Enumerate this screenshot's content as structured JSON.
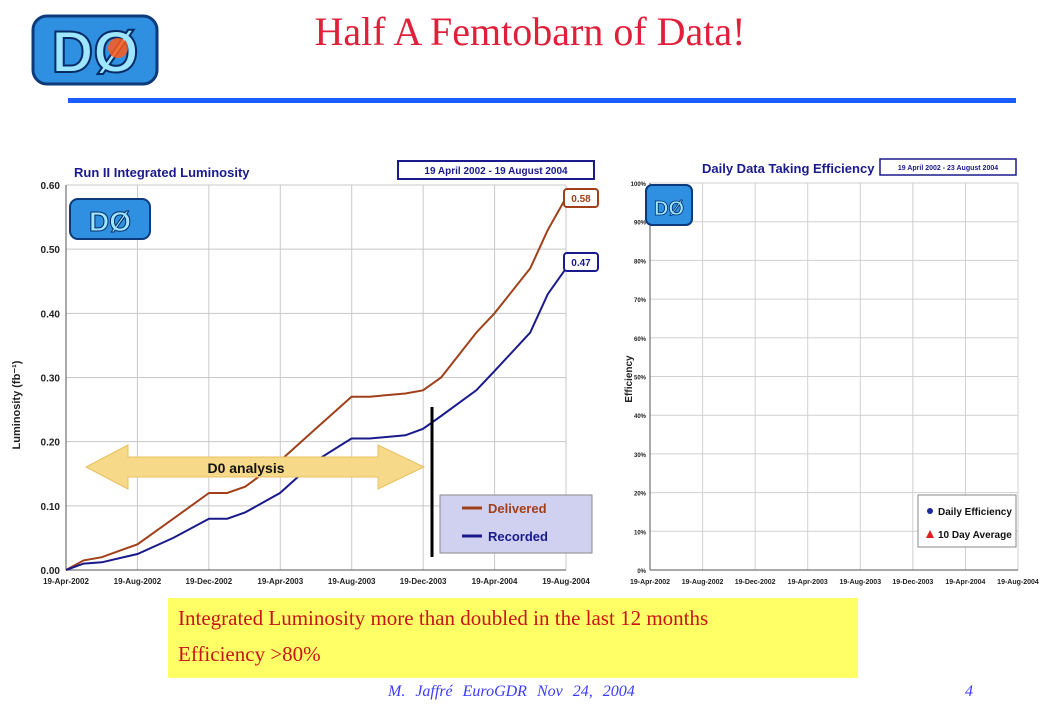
{
  "header": {
    "title": "Half A Femtobarn of Data!",
    "logo_text": "DØ"
  },
  "colors": {
    "title": "#e0203a",
    "rule": "#1a5cff",
    "delivered": "#a0401a",
    "recorded": "#1a1a8c",
    "daily_efficiency": "#1a2a9c",
    "ten_day_average": "#e02020",
    "callout_bg": "#ffff66"
  },
  "chart_data": [
    {
      "type": "line",
      "title": "Run II Integrated Luminosity",
      "date_range": "19 April 2002 - 19 August 2004",
      "ylabel": "Luminosity (fb⁻¹)",
      "xlabel": "",
      "ylim": [
        0,
        0.6
      ],
      "yticks": [
        "0.00",
        "0.10",
        "0.20",
        "0.30",
        "0.40",
        "0.50",
        "0.60"
      ],
      "xticks": [
        "19-Apr-2002",
        "19-Aug-2002",
        "19-Dec-2002",
        "19-Apr-2003",
        "19-Aug-2003",
        "19-Dec-2003",
        "19-Apr-2004",
        "19-Aug-2004"
      ],
      "grid": true,
      "legend": "bottom-right",
      "series": [
        {
          "name": "Delivered",
          "end_label": "0.58",
          "x": [
            "2002-04-19",
            "2002-05-19",
            "2002-06-19",
            "2002-08-19",
            "2002-10-19",
            "2002-12-19",
            "2003-01-19",
            "2003-02-19",
            "2003-04-19",
            "2003-06-19",
            "2003-08-19",
            "2003-09-19",
            "2003-11-19",
            "2003-12-19",
            "2004-01-19",
            "2004-03-19",
            "2004-04-19",
            "2004-06-19",
            "2004-07-19",
            "2004-08-19"
          ],
          "y": [
            0.0,
            0.015,
            0.02,
            0.04,
            0.08,
            0.12,
            0.12,
            0.13,
            0.17,
            0.22,
            0.27,
            0.27,
            0.275,
            0.28,
            0.3,
            0.37,
            0.4,
            0.47,
            0.53,
            0.58
          ]
        },
        {
          "name": "Recorded",
          "end_label": "0.47",
          "x": [
            "2002-04-19",
            "2002-05-19",
            "2002-06-19",
            "2002-08-19",
            "2002-10-19",
            "2002-12-19",
            "2003-01-19",
            "2003-02-19",
            "2003-04-19",
            "2003-06-19",
            "2003-08-19",
            "2003-09-19",
            "2003-11-19",
            "2003-12-19",
            "2004-01-19",
            "2004-03-19",
            "2004-04-19",
            "2004-06-19",
            "2004-07-19",
            "2004-08-19"
          ],
          "y": [
            0.0,
            0.01,
            0.012,
            0.025,
            0.05,
            0.08,
            0.08,
            0.09,
            0.12,
            0.17,
            0.205,
            0.205,
            0.21,
            0.22,
            0.24,
            0.28,
            0.31,
            0.37,
            0.43,
            0.47
          ]
        }
      ],
      "annotation": "D0 analysis"
    },
    {
      "type": "scatter",
      "title": "Daily Data Taking Efficiency",
      "date_range": "19 April 2002 - 23 August 2004",
      "ylabel": "Efficiency",
      "xlabel": "",
      "ylim": [
        0,
        100
      ],
      "yticks": [
        "0%",
        "10%",
        "20%",
        "30%",
        "40%",
        "50%",
        "60%",
        "70%",
        "80%",
        "90%",
        "100%"
      ],
      "xticks": [
        "19-Apr-2002",
        "19-Aug-2002",
        "19-Dec-2002",
        "19-Apr-2003",
        "19-Aug-2003",
        "19-Dec-2003",
        "19-Apr-2004",
        "19-Aug-2004"
      ],
      "grid": true,
      "legend": "bottom-right",
      "series": [
        {
          "name": "Daily Efficiency",
          "x": [],
          "y": []
        },
        {
          "name": "10 Day Average",
          "x": [],
          "y": []
        }
      ]
    }
  ],
  "callout": {
    "line1": "Integrated Luminosity more than doubled in the last 12 months",
    "line2": "Efficiency >80%"
  },
  "footer": {
    "author": "M. Jaffré",
    "event": "EuroGDR  Nov 24, 2004",
    "page": "4"
  }
}
